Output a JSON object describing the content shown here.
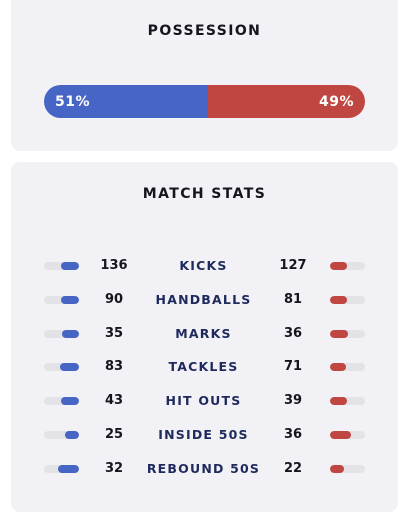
{
  "possession": {
    "title": "POSSESSION",
    "home_value": "51%",
    "away_value": "49%",
    "home_fraction": 0.51,
    "home_color": "#4765c4",
    "away_color": "#c04741"
  },
  "match_stats": {
    "title": "MATCH STATS",
    "rows": [
      {
        "label": "KICKS",
        "home": "136",
        "away": "127"
      },
      {
        "label": "HANDBALLS",
        "home": "90",
        "away": "81"
      },
      {
        "label": "MARKS",
        "home": "35",
        "away": "36"
      },
      {
        "label": "TACKLES",
        "home": "83",
        "away": "71"
      },
      {
        "label": "HIT OUTS",
        "home": "43",
        "away": "39"
      },
      {
        "label": "INSIDE 50S",
        "home": "25",
        "away": "36"
      },
      {
        "label": "REBOUND 50S",
        "home": "32",
        "away": "22"
      }
    ]
  }
}
